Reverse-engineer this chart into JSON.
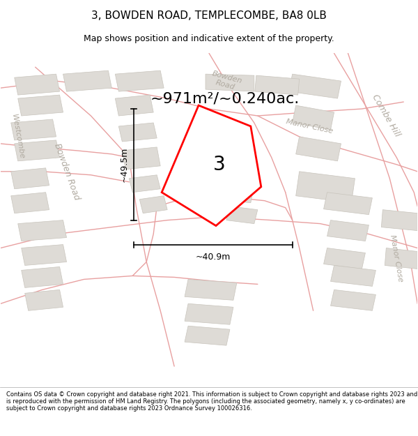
{
  "title_line1": "3, BOWDEN ROAD, TEMPLECOMBE, BA8 0LB",
  "title_line2": "Map shows position and indicative extent of the property.",
  "footer_text": "Contains OS data © Crown copyright and database right 2021. This information is subject to Crown copyright and database rights 2023 and is reproduced with the permission of HM Land Registry. The polygons (including the associated geometry, namely x, y co-ordinates) are subject to Crown copyright and database rights 2023 Ordnance Survey 100026316.",
  "area_label": "~971m²/~0.240ac.",
  "plot_number": "3",
  "dim_width": "~40.9m",
  "dim_height": "~49.5m",
  "map_bg": "#f5f3f0",
  "building_fill": "#dedbd6",
  "building_edge": "#c8c4bc",
  "road_color": "#e8a0a0",
  "label_color": "#b0aaa0",
  "title_fontsize": 11,
  "subtitle_fontsize": 9,
  "area_fontsize": 16,
  "plot_label_fontsize": 20,
  "dim_fontsize": 9,
  "road_label_fontsize": 9
}
